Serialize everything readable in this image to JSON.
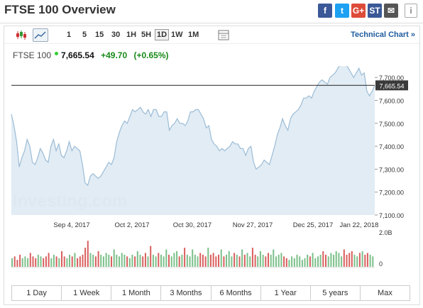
{
  "page": {
    "title": "FTSE 100 Overview"
  },
  "share": [
    {
      "icon": "facebook-icon",
      "glyph": "f",
      "color": "#3b5998"
    },
    {
      "icon": "twitter-icon",
      "glyph": "t",
      "color": "#1da1f2"
    },
    {
      "icon": "google-plus-icon",
      "glyph": "G+",
      "color": "#dd4b39"
    },
    {
      "icon": "stocktwits-icon",
      "glyph": "ST",
      "color": "#3b5998"
    },
    {
      "icon": "email-icon",
      "glyph": "✉",
      "color": "#555555"
    },
    {
      "icon": "info-icon",
      "glyph": "i",
      "color": "#888888"
    }
  ],
  "toolbar": {
    "timeframes": [
      "1",
      "5",
      "15",
      "30",
      "1H",
      "5H",
      "1D",
      "1W",
      "1M"
    ],
    "active_timeframe": "1D",
    "technical_label": "Technical Chart »"
  },
  "quote": {
    "name": "FTSE 100",
    "price": "7,665.54",
    "change": "+49.70",
    "pct": "(+0.65%)"
  },
  "chart_data": {
    "type": "area",
    "x_tick_labels": [
      "Sep 4, 2017",
      "Oct 2, 2017",
      "Oct 30, 2017",
      "Nov 27, 2017",
      "Dec 25, 2017",
      "Jan 22, 2018"
    ],
    "y_tick_labels": [
      "7,700.00",
      "7,600.00",
      "7,500.00",
      "7,400.00",
      "7,300.00",
      "7,200.00",
      "7,100.00"
    ],
    "ylim": [
      7100,
      7750
    ],
    "current_value": 7665.54,
    "current_label": "7,665.54",
    "values": [
      7540,
      7490,
      7420,
      7310,
      7350,
      7380,
      7430,
      7400,
      7330,
      7320,
      7350,
      7390,
      7370,
      7340,
      7330,
      7400,
      7430,
      7380,
      7410,
      7360,
      7350,
      7380,
      7420,
      7380,
      7400,
      7390,
      7380,
      7320,
      7240,
      7230,
      7270,
      7280,
      7270,
      7260,
      7270,
      7290,
      7310,
      7330,
      7320,
      7350,
      7420,
      7460,
      7490,
      7510,
      7500,
      7530,
      7560,
      7550,
      7560,
      7570,
      7550,
      7540,
      7560,
      7530,
      7560,
      7560,
      7530,
      7530,
      7550,
      7550,
      7470,
      7490,
      7500,
      7520,
      7500,
      7500,
      7490,
      7510,
      7550,
      7550,
      7560,
      7560,
      7540,
      7520,
      7480,
      7490,
      7430,
      7410,
      7400,
      7380,
      7390,
      7380,
      7390,
      7400,
      7420,
      7410,
      7410,
      7390,
      7390,
      7360,
      7390,
      7400,
      7330,
      7300,
      7310,
      7320,
      7340,
      7330,
      7320,
      7360,
      7400,
      7450,
      7480,
      7520,
      7490,
      7470,
      7520,
      7540,
      7550,
      7560,
      7580,
      7610,
      7610,
      7620,
      7610,
      7640,
      7660,
      7680,
      7690,
      7680,
      7670,
      7700,
      7710,
      7720,
      7740,
      7760,
      7770,
      7760,
      7740,
      7720,
      7700,
      7720,
      7740,
      7710,
      7720,
      7640,
      7620,
      7640,
      7665
    ],
    "volume_scale_label": "2.0B",
    "volume_zero_label": "0",
    "volume_max": 2.0,
    "volumes": [
      0.5,
      0.6,
      0.4,
      0.7,
      0.5,
      0.6,
      0.5,
      0.8,
      0.6,
      0.5,
      0.7,
      0.6,
      0.5,
      0.6,
      0.8,
      0.5,
      0.7,
      0.6,
      0.5,
      0.9,
      0.6,
      0.5,
      0.7,
      0.6,
      0.8,
      0.5,
      0.6,
      0.7,
      1.1,
      1.5,
      0.8,
      0.7,
      0.6,
      0.9,
      0.7,
      0.6,
      0.8,
      0.7,
      0.6,
      1.0,
      0.7,
      0.6,
      0.8,
      0.7,
      0.6,
      0.5,
      0.7,
      0.6,
      0.9,
      0.7,
      0.6,
      0.8,
      0.6,
      1.2,
      0.7,
      0.6,
      0.8,
      0.7,
      0.6,
      1.0,
      0.7,
      0.6,
      0.8,
      0.9,
      0.6,
      0.7,
      1.1,
      0.7,
      0.6,
      1.0,
      0.7,
      0.6,
      0.8,
      0.7,
      0.6,
      1.1,
      0.7,
      0.8,
      0.6,
      0.7,
      1.0,
      0.6,
      0.7,
      0.9,
      0.6,
      0.8,
      0.7,
      0.6,
      1.0,
      0.7,
      0.8,
      0.6,
      1.1,
      0.7,
      0.6,
      0.9,
      0.7,
      0.6,
      0.8,
      0.7,
      1.0,
      0.6,
      0.7,
      0.8,
      0.6,
      0.5,
      0.4,
      0.6,
      0.5,
      0.7,
      0.6,
      0.4,
      0.5,
      0.7,
      0.6,
      0.8,
      0.5,
      0.6,
      0.7,
      0.9,
      0.7,
      0.6,
      0.8,
      0.7,
      0.9,
      0.8,
      0.6,
      1.0,
      0.7,
      0.8,
      0.9,
      0.7,
      0.6,
      0.8,
      0.9,
      0.7,
      0.8,
      0.7,
      0.6
    ],
    "up_color": "#7cc08a",
    "down_color": "#d9605f",
    "watermark": "Investing.com"
  },
  "ranges": [
    "1 Day",
    "1 Week",
    "1 Month",
    "3 Months",
    "6 Months",
    "1 Year",
    "5 years",
    "Max"
  ]
}
